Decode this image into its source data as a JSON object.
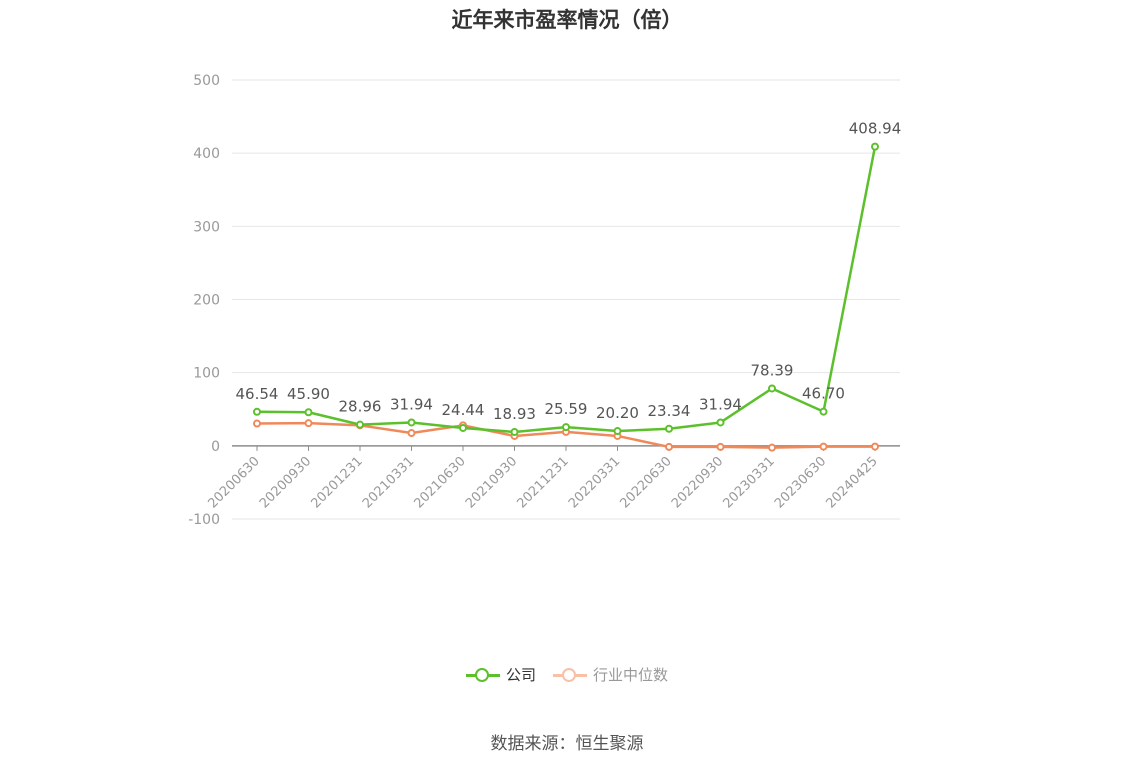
{
  "chart_data": {
    "type": "line",
    "title": "近年来市盈率情况（倍）",
    "categories": [
      "20200630",
      "20200930",
      "20201231",
      "20210331",
      "20210630",
      "20210930",
      "20211231",
      "20220331",
      "20220630",
      "20220930",
      "20230331",
      "20230630",
      "20240425"
    ],
    "ylim": [
      -100,
      500
    ],
    "yticks": [
      "500",
      "400",
      "300",
      "200",
      "100",
      "0",
      "-100"
    ],
    "grid": true,
    "legend_position": "bottom",
    "series": [
      {
        "name": "公司",
        "color": "#5cc02c",
        "values": [
          46.54,
          45.9,
          28.96,
          31.94,
          24.44,
          18.93,
          25.59,
          20.2,
          23.34,
          31.94,
          78.39,
          46.7,
          408.94
        ],
        "labels": [
          "46.54",
          "45.90",
          "28.96",
          "31.94",
          "24.44",
          "18.93",
          "25.59",
          "20.20",
          "23.34",
          "31.94",
          "78.39",
          "46.70",
          "408.94"
        ]
      },
      {
        "name": "行业中位数",
        "color": "#f0895a",
        "values": [
          30.5,
          31.0,
          28.0,
          17.5,
          28.0,
          13.5,
          19.0,
          13.5,
          -1.5,
          -1.5,
          -2.5,
          -1.0,
          -1.0
        ]
      }
    ]
  },
  "legend": {
    "items": [
      "公司",
      "行业中位数"
    ]
  },
  "source": "数据来源：恒生聚源"
}
